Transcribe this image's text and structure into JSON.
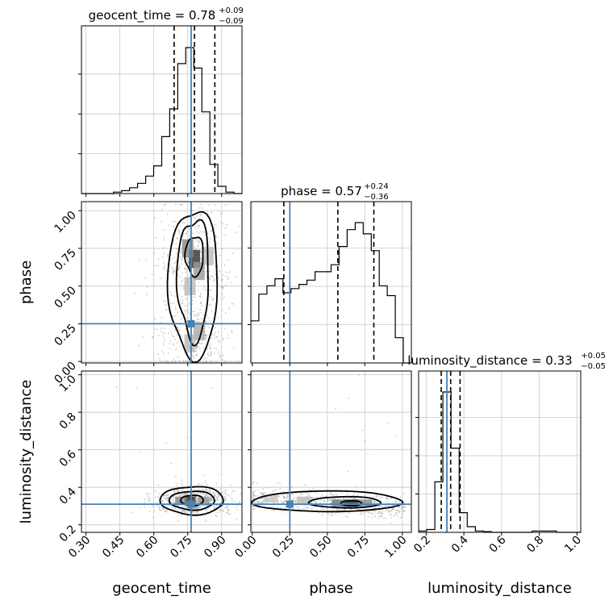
{
  "colors": {
    "truth": "#4682b4",
    "line": "#000000",
    "grid": "#c8c8c8",
    "points": "#8c8c8c"
  },
  "chart_data": [
    {
      "type": "histogram",
      "panel": "geocent_time",
      "title": "geocent_time",
      "value": "0.78",
      "plus": "+0.09",
      "minus": "−0.09",
      "xlim": [
        0.28,
        0.99
      ],
      "bins": {
        "start": 0.28,
        "width": 0.0355,
        "counts": [
          0,
          0,
          0,
          0,
          0.01,
          0.02,
          0.04,
          0.07,
          0.12,
          0.19,
          0.39,
          0.58,
          0.89,
          1.0,
          0.86,
          0.56,
          0.2,
          0.05,
          0.01,
          0
        ]
      },
      "quantiles": [
        0.69,
        0.78,
        0.87
      ],
      "truth": 0.765
    },
    {
      "type": "scatter-density",
      "panel": "phase-vs-geocent_time",
      "xlim": [
        0.28,
        0.99
      ],
      "ylim": [
        -0.01,
        1.06
      ],
      "yticks": [
        "0.00",
        "0.25",
        "0.50",
        "0.75",
        "1.00"
      ],
      "ytick_values": [
        0,
        0.25,
        0.5,
        0.75,
        1.0
      ],
      "ylabel": "phase",
      "truth": [
        0.765,
        0.25
      ]
    },
    {
      "type": "histogram",
      "panel": "phase",
      "title": "phase",
      "value": "0.57",
      "plus": "+0.24",
      "minus": "−0.36",
      "xlim": [
        -0.01,
        1.06
      ],
      "bins": {
        "start": -0.01,
        "width": 0.0535,
        "counts": [
          0.3,
          0.49,
          0.55,
          0.6,
          0.5,
          0.53,
          0.56,
          0.59,
          0.65,
          0.65,
          0.7,
          0.83,
          0.95,
          1.0,
          0.92,
          0.8,
          0.55,
          0.48,
          0.18,
          0
        ]
      },
      "quantiles": [
        0.21,
        0.57,
        0.81
      ],
      "truth": 0.25
    },
    {
      "type": "scatter-density",
      "panel": "luminosity_distance-vs-geocent_time",
      "xlim": [
        0.28,
        0.99
      ],
      "ylim": [
        0.16,
        1.02
      ],
      "xticks": [
        "0.30",
        "0.45",
        "0.60",
        "0.75",
        "0.90"
      ],
      "xtick_values": [
        0.3,
        0.45,
        0.6,
        0.75,
        0.9
      ],
      "yticks": [
        "0.2",
        "0.4",
        "0.6",
        "0.8",
        "1.0"
      ],
      "ytick_values": [
        0.2,
        0.4,
        0.6,
        0.8,
        1.0
      ],
      "xlabel": "geocent_time",
      "ylabel": "luminosity_distance",
      "truth": [
        0.765,
        0.31
      ]
    },
    {
      "type": "scatter-density",
      "panel": "luminosity_distance-vs-phase",
      "xlim": [
        -0.01,
        1.06
      ],
      "ylim": [
        0.16,
        1.02
      ],
      "xticks": [
        "0.00",
        "0.25",
        "0.50",
        "0.75",
        "1.00"
      ],
      "xtick_values": [
        0,
        0.25,
        0.5,
        0.75,
        1.0
      ],
      "xlabel": "phase",
      "truth": [
        0.25,
        0.31
      ]
    },
    {
      "type": "histogram",
      "panel": "luminosity_distance",
      "title": "luminosity_distance",
      "value": "0.33",
      "plus": "+0.05",
      "minus": "−0.05",
      "xlim": [
        0.16,
        1.02
      ],
      "bins": {
        "start": 0.16,
        "width": 0.043,
        "counts": [
          0.01,
          0.02,
          0.36,
          1.0,
          0.6,
          0.14,
          0.04,
          0.01,
          0.005,
          0,
          0,
          0,
          0,
          0,
          0.01,
          0.01,
          0.01,
          0,
          0,
          0
        ]
      },
      "quantiles": [
        0.28,
        0.33,
        0.38
      ],
      "truth": 0.31,
      "xticks": [
        "0.2",
        "0.4",
        "0.6",
        "0.8",
        "1.0"
      ],
      "xtick_values": [
        0.2,
        0.4,
        0.6,
        0.8,
        1.0
      ],
      "xlabel": "luminosity_distance"
    }
  ]
}
